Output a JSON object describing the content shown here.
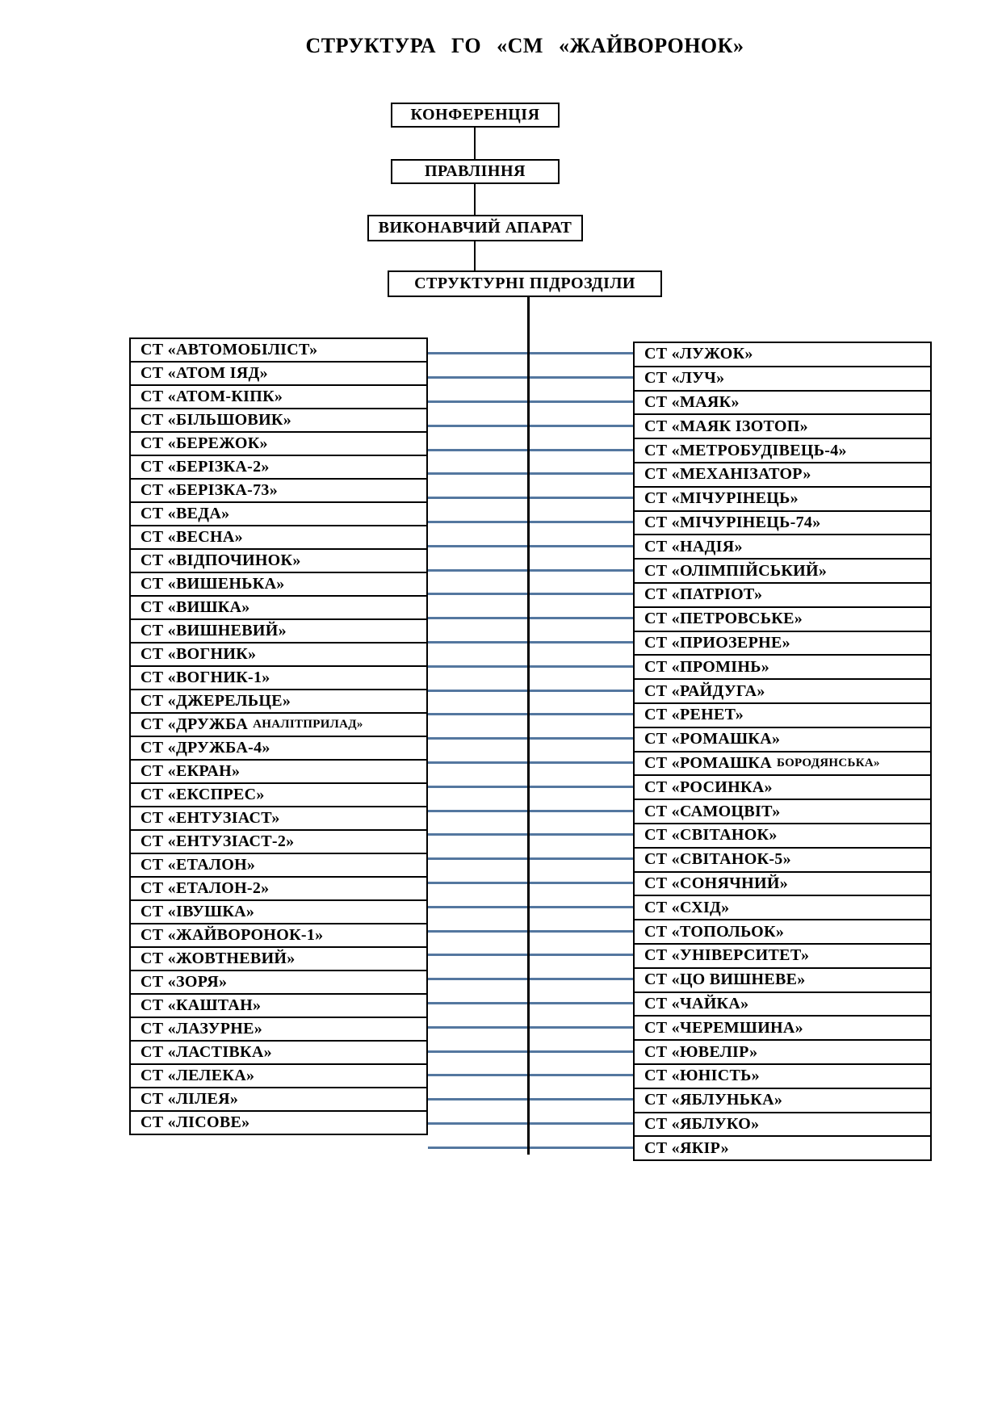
{
  "title": "СТРУКТУРА ГО «СМ «ЖАЙВОРОНОК»",
  "hierarchy": [
    {
      "label": "КОНФЕРЕНЦІЯ"
    },
    {
      "label": "ПРАВЛІННЯ"
    },
    {
      "label": "ВИКОНАВЧИЙ АПАРАТ"
    },
    {
      "label": "СТРУКТУРНІ ПІДРОЗДІЛИ"
    }
  ],
  "columns": {
    "left": [
      {
        "text": "СТ «АВТОМОБІЛІСТ»"
      },
      {
        "text": "СТ «АТОМ ІЯД»"
      },
      {
        "text": "СТ «АТОМ-КІПК»"
      },
      {
        "text": "СТ «БІЛЬШОВИК»"
      },
      {
        "text": "СТ «БЕРЕЖОК»"
      },
      {
        "text": "СТ «БЕРІЗКА-2»"
      },
      {
        "text": "СТ «БЕРІЗКА-73»"
      },
      {
        "text": "СТ «ВЕДА»"
      },
      {
        "text": "СТ «ВЕСНА»"
      },
      {
        "text": "СТ «ВІДПОЧИНОК»"
      },
      {
        "text": "СТ «ВИШЕНЬКА»"
      },
      {
        "text": "СТ «ВИШКА»"
      },
      {
        "text": "СТ «ВИШНЕВИЙ»"
      },
      {
        "text": "СТ «ВОГНИК»"
      },
      {
        "text": "СТ «ВОГНИК-1»"
      },
      {
        "text": "СТ «ДЖЕРЕЛЬЦЕ»"
      },
      {
        "text": "СТ «ДРУЖБА",
        "small": "АНАЛІТПРИЛАД»"
      },
      {
        "text": "СТ «ДРУЖБА-4»"
      },
      {
        "text": "СТ «ЕКРАН»"
      },
      {
        "text": "СТ «ЕКСПРЕС»"
      },
      {
        "text": "СТ «ЕНТУЗІАСТ»"
      },
      {
        "text": "СТ «ЕНТУЗІАСТ-2»"
      },
      {
        "text": "СТ «ЕТАЛОН»"
      },
      {
        "text": "СТ «ЕТАЛОН-2»"
      },
      {
        "text": "СТ «ІВУШКА»"
      },
      {
        "text": "СТ «ЖАЙВОРОНОК-1»"
      },
      {
        "text": "СТ «ЖОВТНЕВИЙ»"
      },
      {
        "text": "СТ «ЗОРЯ»"
      },
      {
        "text": "СТ «КАШТАН»"
      },
      {
        "text": "СТ «ЛАЗУРНЕ»"
      },
      {
        "text": "СТ «ЛАСТІВКА»"
      },
      {
        "text": "СТ «ЛЕЛЕКА»"
      },
      {
        "text": "СТ «ЛІЛЕЯ»"
      },
      {
        "text": "СТ «ЛІСОВЕ»"
      }
    ],
    "right": [
      {
        "text": "СТ «ЛУЖОК»"
      },
      {
        "text": "СТ «ЛУЧ»"
      },
      {
        "text": "СТ «МАЯК»"
      },
      {
        "text": "СТ «МАЯК ІЗОТОП»"
      },
      {
        "text": "СТ «МЕТРОБУДІВЕЦЬ-4»"
      },
      {
        "text": "СТ «МЕХАНІЗАТОР»"
      },
      {
        "text": "СТ «МІЧУРІНЕЦЬ»"
      },
      {
        "text": "СТ «МІЧУРІНЕЦЬ-74»"
      },
      {
        "text": "СТ «НАДІЯ»"
      },
      {
        "text": "СТ «ОЛІМПІЙСЬКИЙ»"
      },
      {
        "text": "СТ «ПАТРІОТ»"
      },
      {
        "text": "СТ «ПЕТРОВСЬКЕ»"
      },
      {
        "text": "СТ «ПРИОЗЕРНЕ»"
      },
      {
        "text": "СТ «ПРОМІНЬ»"
      },
      {
        "text": "СТ «РАЙДУГА»"
      },
      {
        "text": "СТ «РЕНЕТ»"
      },
      {
        "text": "СТ «РОМАШКА»"
      },
      {
        "text": "СТ «РОМАШКА",
        "small": "БОРОДЯНСЬКА»"
      },
      {
        "text": "СТ «РОСИНКА»"
      },
      {
        "text": "СТ «САМОЦВІТ»"
      },
      {
        "text": "СТ «СВІТАНОК»"
      },
      {
        "text": "СТ «СВІТАНОК-5»"
      },
      {
        "text": "СТ «СОНЯЧНИЙ»"
      },
      {
        "text": "СТ «СХІД»"
      },
      {
        "text": "СТ «ТОПОЛЬОК»"
      },
      {
        "text": "СТ «УНІВЕРСИТЕТ»"
      },
      {
        "text": "СТ «ЦО ВИШНЕВЕ»"
      },
      {
        "text": "СТ «ЧАЙКА»"
      },
      {
        "text": "СТ «ЧЕРЕМШИНА»"
      },
      {
        "text": "СТ «ЮВЕЛІР»"
      },
      {
        "text": "СТ «ЮНІСТЬ»"
      },
      {
        "text": "СТ «ЯБЛУНЬКА»"
      },
      {
        "text": "СТ «ЯБЛУКО»"
      },
      {
        "text": "СТ «ЯКІР»"
      }
    ]
  },
  "colors": {
    "connector_line": "#54779f",
    "box_border": "#000000",
    "text": "#000000"
  }
}
